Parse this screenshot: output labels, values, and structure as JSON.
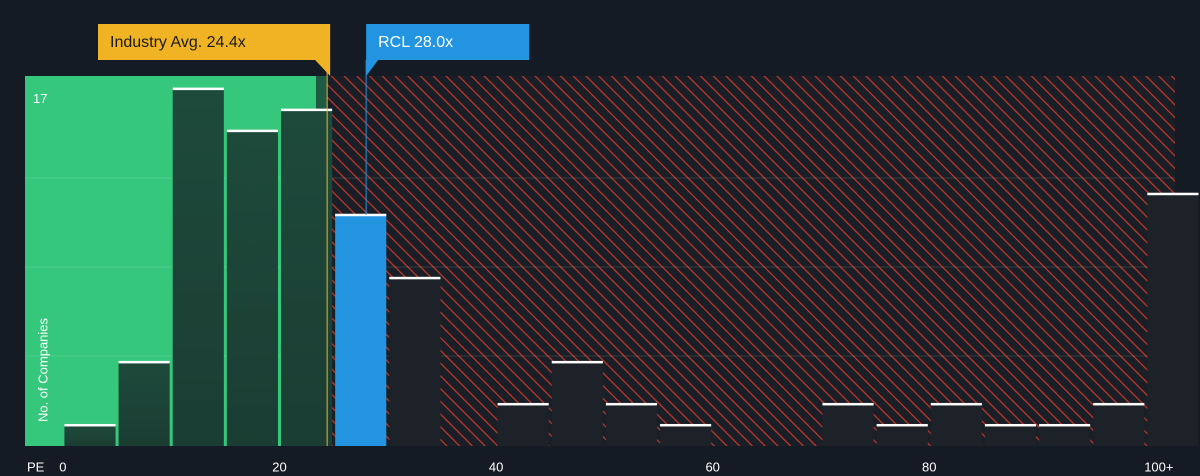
{
  "chart_data": {
    "type": "histogram",
    "x_label": "PE",
    "y_label": "No. of Companies",
    "bins": [
      0,
      5,
      10,
      15,
      20,
      25,
      30,
      35,
      40,
      45,
      50,
      55,
      60,
      65,
      70,
      75,
      80,
      85,
      90,
      95,
      100,
      105
    ],
    "values": [
      1,
      4,
      17,
      15,
      16,
      11,
      8,
      0,
      2,
      4,
      2,
      1,
      0,
      0,
      2,
      1,
      2,
      1,
      1,
      2,
      12
    ],
    "xlim": [
      -3.5,
      105
    ],
    "ylim": [
      0,
      17.6
    ],
    "xticks": [
      0,
      20,
      40,
      60,
      80,
      {
        "value": 100,
        "label": "100+"
      }
    ],
    "yticks": [
      17
    ],
    "annotations": [
      {
        "label": "Industry Avg. 24.4x",
        "value": 24.4,
        "color": "#f0b323"
      },
      {
        "label": "RCL 28.0x",
        "value": 28.0,
        "color": "#2394e0"
      }
    ],
    "colors": {
      "below": "#35c77b",
      "above": "#c0392b",
      "highlight": "#2394e0"
    }
  }
}
